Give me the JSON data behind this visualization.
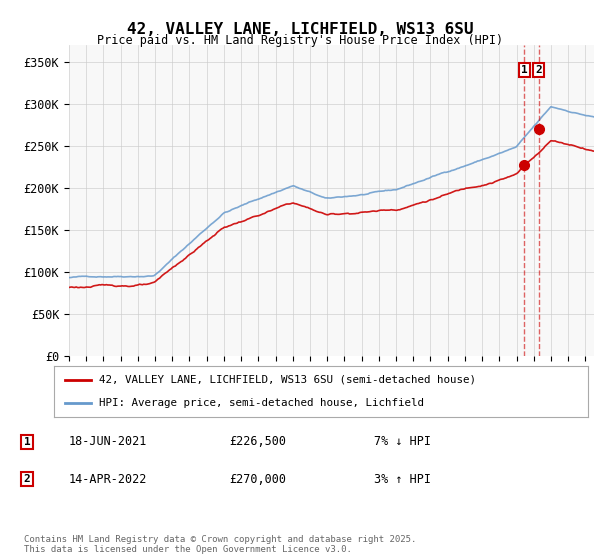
{
  "title": "42, VALLEY LANE, LICHFIELD, WS13 6SU",
  "subtitle": "Price paid vs. HM Land Registry's House Price Index (HPI)",
  "ylabel_ticks": [
    "£0",
    "£50K",
    "£100K",
    "£150K",
    "£200K",
    "£250K",
    "£300K",
    "£350K"
  ],
  "ytick_values": [
    0,
    50000,
    100000,
    150000,
    200000,
    250000,
    300000,
    350000
  ],
  "ylim": [
    0,
    370000
  ],
  "xlim_start": 1995.0,
  "xlim_end": 2025.5,
  "transaction1": {
    "date_label": "18-JUN-2021",
    "price": 226500,
    "pct": "7%",
    "dir": "↓",
    "year": 2021.46
  },
  "transaction2": {
    "date_label": "14-APR-2022",
    "price": 270000,
    "pct": "3%",
    "dir": "↑",
    "year": 2022.29
  },
  "legend_line1": "42, VALLEY LANE, LICHFIELD, WS13 6SU (semi-detached house)",
  "legend_line2": "HPI: Average price, semi-detached house, Lichfield",
  "footer": "Contains HM Land Registry data © Crown copyright and database right 2025.\nThis data is licensed under the Open Government Licence v3.0.",
  "line_color_red": "#cc0000",
  "line_color_blue": "#6699cc",
  "bg_color": "#f8f8f8",
  "grid_color": "#cccccc",
  "annotation_box_color": "#cc0000",
  "dashed_line_color": "#cc0000"
}
